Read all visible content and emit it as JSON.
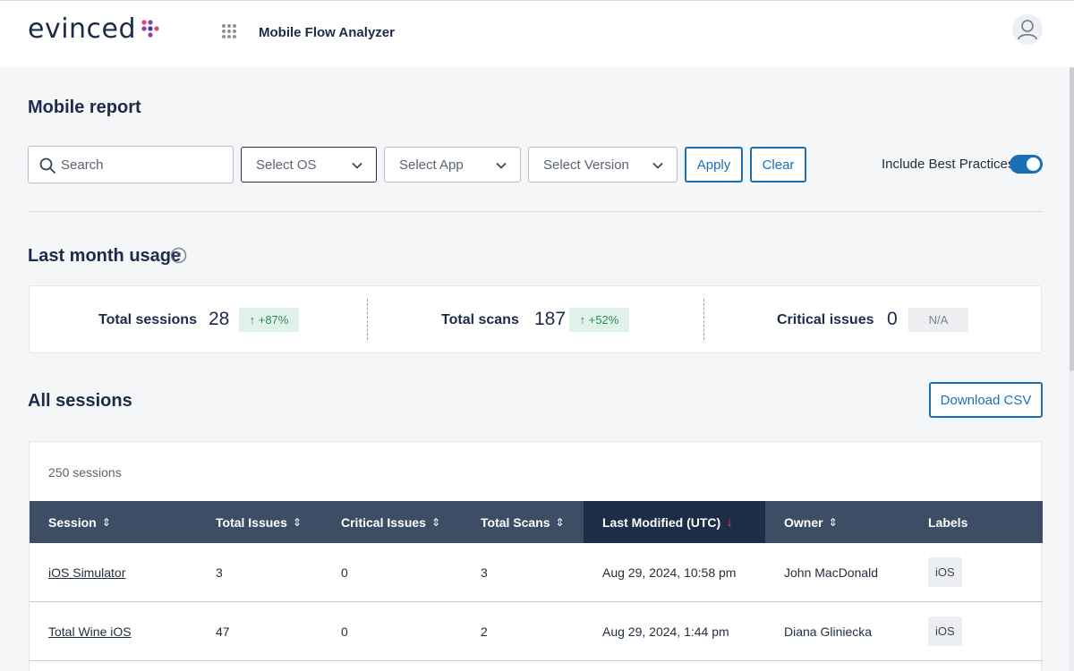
{
  "header": {
    "logo_text": "evinced",
    "app_name": "Mobile Flow Analyzer"
  },
  "page": {
    "title": "Mobile report"
  },
  "filters": {
    "search_placeholder": "Search",
    "select_os": "Select OS",
    "select_app": "Select App",
    "select_version": "Select Version",
    "apply_label": "Apply",
    "clear_label": "Clear",
    "include_best_practices_label": "Include Best Practices",
    "include_best_practices_on": true
  },
  "usage": {
    "title": "Last month usage",
    "stats": [
      {
        "label": "Total sessions",
        "value": "28",
        "change": "↑ +87%"
      },
      {
        "label": "Total scans",
        "value": "187",
        "change": "↑ +52%"
      },
      {
        "label": "Critical issues",
        "value": "0",
        "change": "N/A"
      }
    ]
  },
  "sessions": {
    "title": "All sessions",
    "download_label": "Download CSV",
    "count_text": "250 sessions",
    "columns": [
      "Session",
      "Total Issues",
      "Critical Issues",
      "Total Scans",
      "Last Modified (UTC)",
      "Owner",
      "Labels"
    ],
    "sorted_column": "Last Modified (UTC)",
    "rows": [
      {
        "session": "iOS Simulator",
        "total_issues": "3",
        "critical_issues": "0",
        "total_scans": "3",
        "last_modified": "Aug 29, 2024, 10:58 pm",
        "owner": "John MacDonald",
        "label": "iOS"
      },
      {
        "session": "Total Wine iOS",
        "total_issues": "47",
        "critical_issues": "0",
        "total_scans": "2",
        "last_modified": "Aug 29, 2024, 1:44 pm",
        "owner": "Diana Gliniecka",
        "label": "iOS"
      }
    ]
  },
  "colors": {
    "primary": "#1b6fb5",
    "table_header": "#3d4d66",
    "sorted_header": "#1d2c47",
    "sort_accent": "#e8407a",
    "positive": "#2c8a63"
  }
}
